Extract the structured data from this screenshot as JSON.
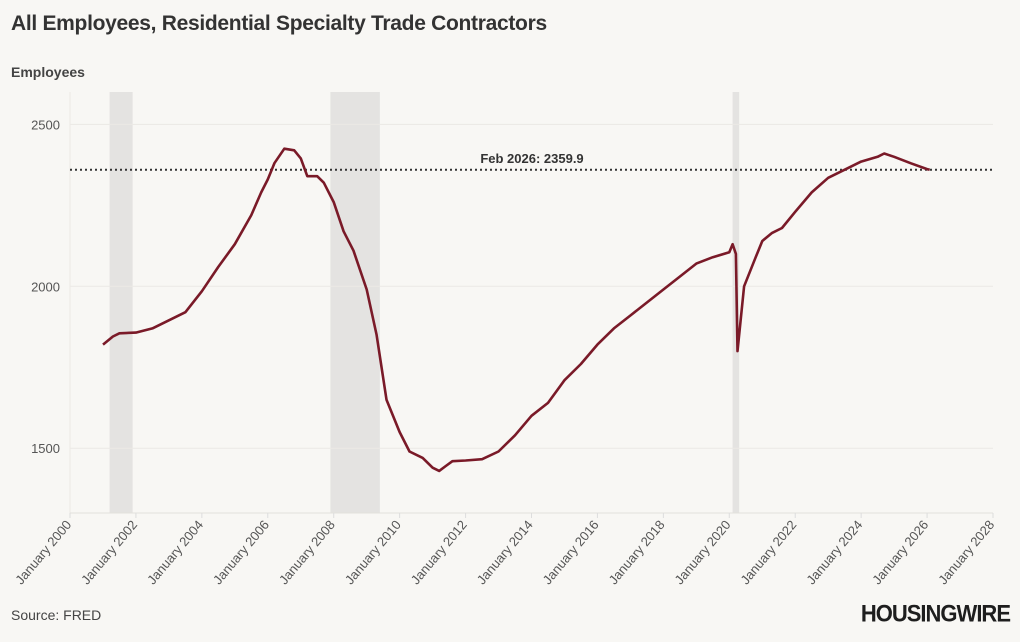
{
  "chart_data": {
    "type": "line",
    "title": "All Employees, Residential Specialty Trade Contractors",
    "ylabel": "Employees",
    "xlabel": "",
    "source": "Source: FRED",
    "xlim": [
      2000,
      2028
    ],
    "ylim": [
      1300,
      2600
    ],
    "yticks": [
      1500,
      2000,
      2500
    ],
    "ytick_labels": [
      "1500",
      "2000",
      "2500"
    ],
    "xticks": [
      2000,
      2002,
      2004,
      2006,
      2008,
      2010,
      2012,
      2014,
      2016,
      2018,
      2020,
      2022,
      2024,
      2026,
      2028
    ],
    "xtick_labels": [
      "January 2000",
      "January 2002",
      "January 2004",
      "January 2006",
      "January 2008",
      "January 2010",
      "January 2012",
      "January 2014",
      "January 2016",
      "January 2018",
      "January 2020",
      "January 2022",
      "January 2024",
      "January 2026",
      "January 2028"
    ],
    "grid": "horizontal",
    "line_color": "#7a1a28",
    "recessions": [
      [
        2001.2,
        2001.9
      ],
      [
        2007.9,
        2009.4
      ],
      [
        2020.1,
        2020.3
      ]
    ],
    "reference_line": {
      "value": 2359.9,
      "label": "Feb 2026: 2359.9"
    },
    "series": [
      {
        "x": [
          2001.0,
          2001.3,
          2001.5,
          2002.0,
          2002.5,
          2003.0,
          2003.5,
          2004.0,
          2004.5,
          2005.0,
          2005.5,
          2005.8,
          2006.0,
          2006.2,
          2006.5,
          2006.8,
          2007.0,
          2007.2,
          2007.5,
          2007.7,
          2008.0,
          2008.3,
          2008.6,
          2009.0,
          2009.3,
          2009.6,
          2010.0,
          2010.3,
          2010.7,
          2011.0,
          2011.2,
          2011.4,
          2011.6,
          2012.0,
          2012.5,
          2013.0,
          2013.5,
          2014.0,
          2014.5,
          2015.0,
          2015.5,
          2016.0,
          2016.5,
          2017.0,
          2017.5,
          2018.0,
          2018.5,
          2019.0,
          2019.5,
          2020.0,
          2020.1,
          2020.2,
          2020.25,
          2020.45,
          2020.8,
          2021.0,
          2021.3,
          2021.6,
          2022.0,
          2022.5,
          2023.0,
          2023.5,
          2024.0,
          2024.5,
          2024.7,
          2025.0,
          2025.5,
          2026.0,
          2026.08
        ],
        "y": [
          1820,
          1845,
          1855,
          1857,
          1870,
          1895,
          1920,
          1985,
          2060,
          2130,
          2220,
          2290,
          2330,
          2380,
          2425,
          2420,
          2395,
          2340,
          2340,
          2320,
          2260,
          2170,
          2110,
          1990,
          1850,
          1650,
          1550,
          1490,
          1470,
          1440,
          1430,
          1445,
          1460,
          1462,
          1466,
          1490,
          1540,
          1600,
          1640,
          1710,
          1760,
          1820,
          1870,
          1910,
          1950,
          1990,
          2030,
          2070,
          2090,
          2105,
          2130,
          2100,
          1800,
          2000,
          2090,
          2140,
          2165,
          2180,
          2230,
          2290,
          2335,
          2360,
          2385,
          2400,
          2410,
          2400,
          2380,
          2362,
          2359.9
        ]
      }
    ]
  },
  "logo": "HOUSINGWIRE"
}
